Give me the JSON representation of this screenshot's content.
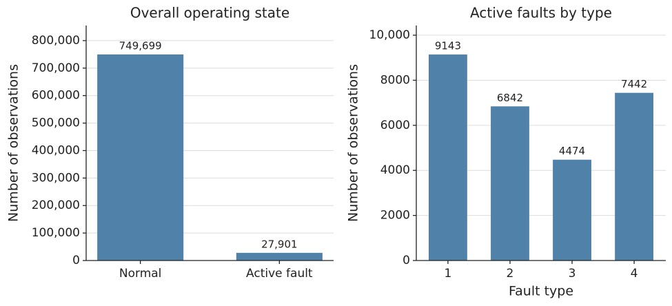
{
  "chart_data": [
    {
      "type": "bar",
      "title": "Overall operating state",
      "ylabel": "Number of observations",
      "categories": [
        "Normal",
        "Active fault"
      ],
      "values": [
        749699,
        27901
      ],
      "value_labels": [
        "749,699",
        "27,901"
      ],
      "color": "#4f81a9",
      "ylim": [
        0,
        855000
      ],
      "yticks": [
        0,
        {
          "value": 100000,
          "label": "100,000"
        },
        {
          "value": 200000,
          "label": "200,000"
        },
        {
          "value": 300000,
          "label": "300,000"
        },
        {
          "value": 400000,
          "label": "400,000"
        },
        {
          "value": 500000,
          "label": "500,000"
        },
        {
          "value": 600000,
          "label": "600,000"
        },
        {
          "value": 700000,
          "label": "700,000"
        },
        {
          "value": 800000,
          "label": "800,000"
        }
      ],
      "grid": true
    },
    {
      "type": "bar",
      "title": "Active faults by type",
      "ylabel": "Number of observations",
      "xlabel": "Fault type",
      "categories": [
        "1",
        "2",
        "3",
        "4"
      ],
      "values": [
        9143,
        6842,
        4474,
        7442
      ],
      "color": "#4f81a9",
      "ylim": [
        0,
        10430
      ],
      "yticks": [
        0,
        2000,
        4000,
        6000,
        8000,
        {
          "value": 10000,
          "label": "10,000"
        }
      ],
      "grid": true
    }
  ]
}
